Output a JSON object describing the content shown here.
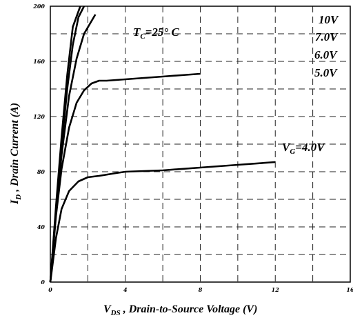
{
  "chart_data": {
    "type": "line",
    "title": "",
    "xlabel": {
      "main": "V",
      "sub": "DS",
      "rest": " , Drain-to-Source Voltage (V)"
    },
    "ylabel": {
      "main": "I",
      "sub": "D",
      "rest": " , Drain Current (A)"
    },
    "xlim": [
      0,
      16
    ],
    "ylim": [
      0,
      200
    ],
    "x_ticks": [
      "0",
      "4",
      "8",
      "12",
      "16"
    ],
    "y_ticks": [
      "0",
      "40",
      "80",
      "120",
      "160",
      "200"
    ],
    "grid": true,
    "annotation": {
      "main": "T",
      "sub": "C",
      "rest": "=25° C"
    },
    "series": [
      {
        "name": "10V",
        "label": "10V",
        "points": [
          [
            0,
            0
          ],
          [
            0.3,
            55
          ],
          [
            0.6,
            105
          ],
          [
            0.9,
            150
          ],
          [
            1.2,
            185
          ],
          [
            1.6,
            200
          ]
        ]
      },
      {
        "name": "7.0V",
        "label": "7.0V",
        "points": [
          [
            0,
            0
          ],
          [
            0.3,
            52
          ],
          [
            0.6,
            98
          ],
          [
            0.9,
            140
          ],
          [
            1.2,
            172
          ],
          [
            1.5,
            192
          ],
          [
            1.8,
            200
          ]
        ]
      },
      {
        "name": "6.0V",
        "label": "6.0V",
        "points": [
          [
            0,
            0
          ],
          [
            0.3,
            50
          ],
          [
            0.6,
            92
          ],
          [
            1.0,
            135
          ],
          [
            1.4,
            162
          ],
          [
            1.8,
            180
          ],
          [
            2.4,
            194
          ]
        ]
      },
      {
        "name": "5.0V",
        "label": "5.0V",
        "points": [
          [
            0,
            0
          ],
          [
            0.3,
            48
          ],
          [
            0.6,
            82
          ],
          [
            1.0,
            112
          ],
          [
            1.4,
            130
          ],
          [
            1.8,
            139
          ],
          [
            2.2,
            144
          ],
          [
            2.6,
            146
          ],
          [
            3,
            146
          ],
          [
            4,
            147
          ],
          [
            5,
            148
          ],
          [
            6,
            149
          ],
          [
            7,
            150
          ],
          [
            8,
            151
          ]
        ]
      },
      {
        "name": "4.0V",
        "label": {
          "main": "V",
          "sub": "G",
          "rest": "=4.0V"
        },
        "points": [
          [
            0,
            0
          ],
          [
            0.3,
            32
          ],
          [
            0.6,
            53
          ],
          [
            1.0,
            66
          ],
          [
            1.5,
            73
          ],
          [
            2.0,
            76
          ],
          [
            2.6,
            77
          ],
          [
            3.5,
            79
          ],
          [
            4,
            80
          ],
          [
            6,
            81
          ],
          [
            8,
            83
          ],
          [
            10,
            85
          ],
          [
            12,
            87
          ]
        ]
      }
    ]
  }
}
